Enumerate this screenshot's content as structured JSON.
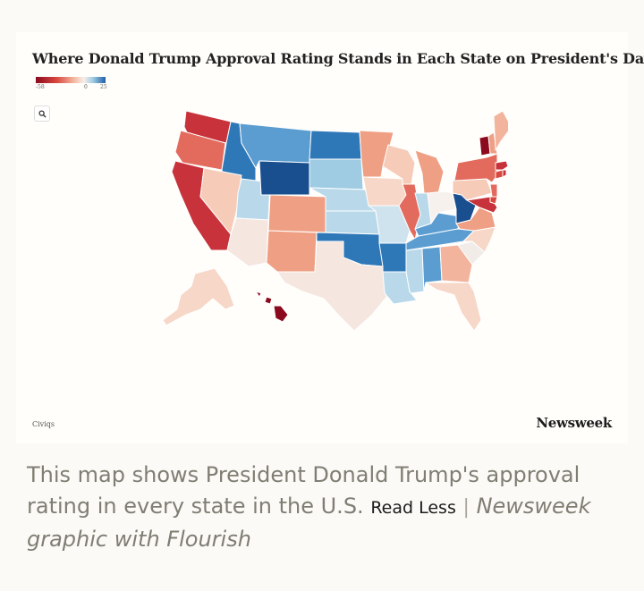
{
  "chart": {
    "title": "Where Donald Trump Approval Rating Stands in Each State on President's Day",
    "legend": {
      "min_label": "-58",
      "mid_label": "0",
      "max_label": "25",
      "min": -58,
      "max": 25
    },
    "zoom_icon": "search-icon",
    "source": "Civiqs",
    "brand": "Newsweek"
  },
  "caption": {
    "text": "This map shows President Donald Trump's approval rating in every state in the U.S.",
    "read_less": "Read Less",
    "separator": "|",
    "credit": "Newsweek graphic with Flourish"
  },
  "colors": {
    "dark_red": "#8b0a1e",
    "red": "#c8323a",
    "mid_red": "#e36b5d",
    "salmon": "#ef9f83",
    "light_salmon": "#f6cbb8",
    "pale": "#f5e6df",
    "light_blue": "#b9d9ea",
    "mid_blue": "#5b9dd1",
    "blue": "#2f78b8",
    "dark_blue": "#1a4f8f"
  },
  "states": [
    {
      "id": "WA",
      "color": "#c8323a"
    },
    {
      "id": "OR",
      "color": "#e36b5d"
    },
    {
      "id": "CA",
      "color": "#c8323a"
    },
    {
      "id": "ID",
      "color": "#2f78b8"
    },
    {
      "id": "NV",
      "color": "#f6cbb8"
    },
    {
      "id": "UT",
      "color": "#b9d9ea"
    },
    {
      "id": "AZ",
      "color": "#f5e6df"
    },
    {
      "id": "MT",
      "color": "#5b9dd1"
    },
    {
      "id": "WY",
      "color": "#1a4f8f"
    },
    {
      "id": "CO",
      "color": "#ef9f83"
    },
    {
      "id": "NM",
      "color": "#ef9f83"
    },
    {
      "id": "ND",
      "color": "#2f78b8"
    },
    {
      "id": "SD",
      "color": "#9fcbe3"
    },
    {
      "id": "NE",
      "color": "#b9d9ea"
    },
    {
      "id": "KS",
      "color": "#b9d9ea"
    },
    {
      "id": "OK",
      "color": "#2f78b8"
    },
    {
      "id": "TX",
      "color": "#f5e6df"
    },
    {
      "id": "MN",
      "color": "#ef9f83"
    },
    {
      "id": "IA",
      "color": "#f6d7c8"
    },
    {
      "id": "MO",
      "color": "#cfe3ee"
    },
    {
      "id": "AR",
      "color": "#2f78b8"
    },
    {
      "id": "LA",
      "color": "#b9d9ea"
    },
    {
      "id": "WI",
      "color": "#f6cbb8"
    },
    {
      "id": "IL",
      "color": "#e36b5d"
    },
    {
      "id": "MS",
      "color": "#b9d9ea"
    },
    {
      "id": "MI",
      "color": "#ef9f83"
    },
    {
      "id": "IN",
      "color": "#b9d9ea"
    },
    {
      "id": "KY",
      "color": "#5b9dd1"
    },
    {
      "id": "TN",
      "color": "#5b9dd1"
    },
    {
      "id": "AL",
      "color": "#5b9dd1"
    },
    {
      "id": "OH",
      "color": "#f7f1ed"
    },
    {
      "id": "GA",
      "color": "#f3b49e"
    },
    {
      "id": "FL",
      "color": "#f6d7c8"
    },
    {
      "id": "SC",
      "color": "#f2ece8"
    },
    {
      "id": "NC",
      "color": "#f6d7c8"
    },
    {
      "id": "VA",
      "color": "#ef9f83"
    },
    {
      "id": "WV",
      "color": "#1a4f8f"
    },
    {
      "id": "PA",
      "color": "#f6cbb8"
    },
    {
      "id": "NY",
      "color": "#e36b5d"
    },
    {
      "id": "MD",
      "color": "#c8323a"
    },
    {
      "id": "NJ",
      "color": "#e36b5d"
    },
    {
      "id": "DE",
      "color": "#d9483e"
    },
    {
      "id": "CT",
      "color": "#d9483e"
    },
    {
      "id": "RI",
      "color": "#c8323a"
    },
    {
      "id": "MA",
      "color": "#c8323a"
    },
    {
      "id": "VT",
      "color": "#8b0a1e"
    },
    {
      "id": "NH",
      "color": "#ef9f83"
    },
    {
      "id": "ME",
      "color": "#f3b49e"
    },
    {
      "id": "AK",
      "color": "#f6d7c8"
    },
    {
      "id": "HI",
      "color": "#8b0a1e"
    }
  ]
}
